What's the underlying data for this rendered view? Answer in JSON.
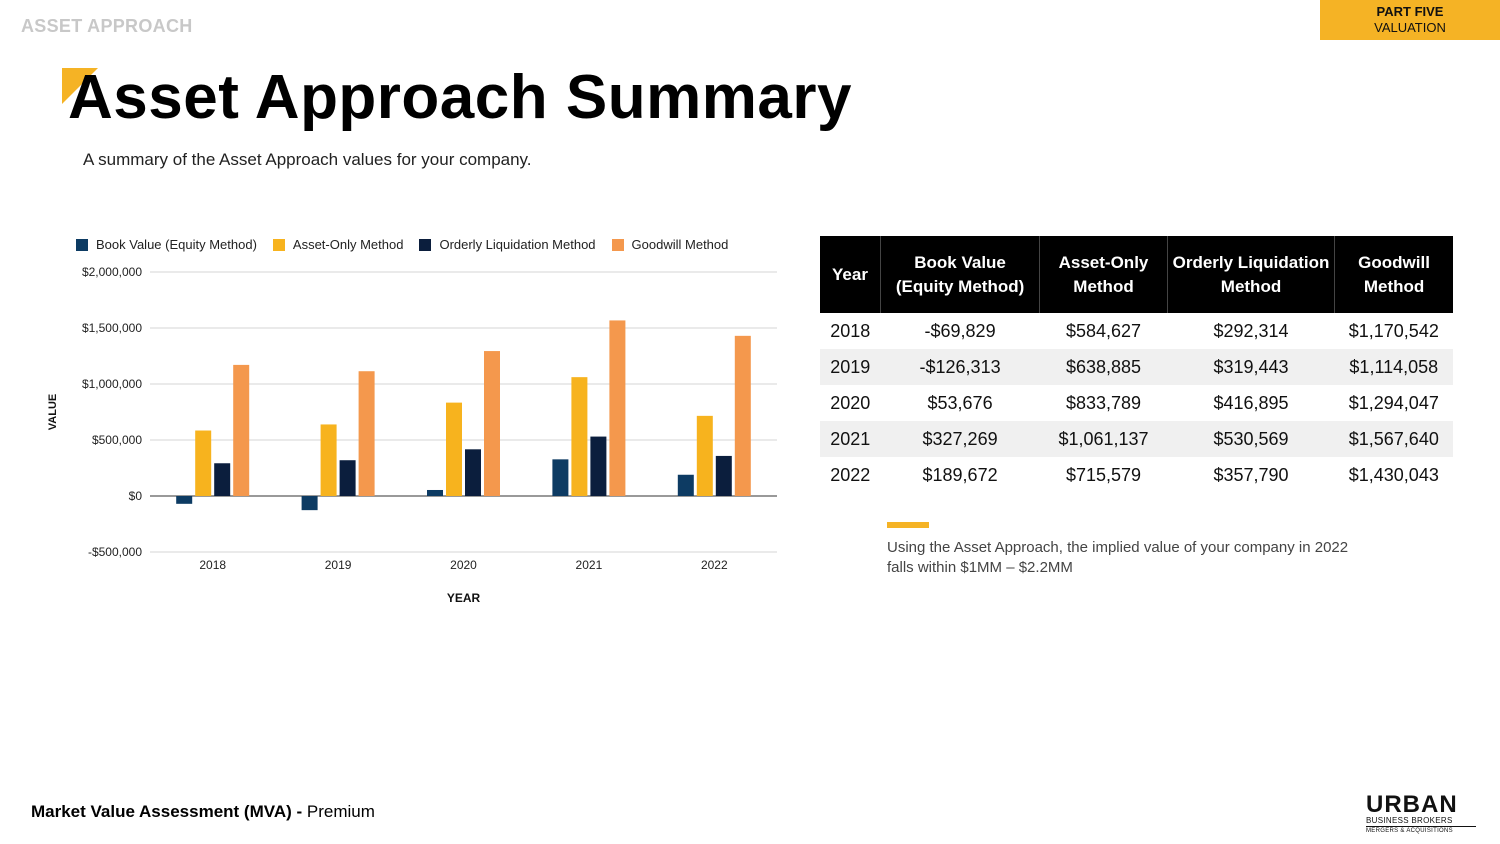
{
  "header": {
    "section_label": "ASSET APPROACH",
    "part_line1": "PART FIVE",
    "part_line2": "VALUATION"
  },
  "title": "Asset Approach Summary",
  "subtitle": "A summary of the Asset Approach values for your company.",
  "colors": {
    "accent": "#f5b325",
    "book_value": "#0d3b63",
    "asset_only": "#f7b31e",
    "orderly_liquidation": "#0b1e3d",
    "goodwill": "#f4984d"
  },
  "chart_data": {
    "type": "bar",
    "categories": [
      "2018",
      "2019",
      "2020",
      "2021",
      "2022"
    ],
    "series": [
      {
        "name": "Book Value (Equity Method)",
        "color": "#0d3b63",
        "values": [
          -69829,
          -126313,
          53676,
          327269,
          189672
        ]
      },
      {
        "name": "Asset-Only Method",
        "color": "#f7b31e",
        "values": [
          584627,
          638885,
          833789,
          1061137,
          715579
        ]
      },
      {
        "name": "Orderly Liquidation Method",
        "color": "#0b1e3d",
        "values": [
          292314,
          319443,
          416895,
          530569,
          357790
        ]
      },
      {
        "name": "Goodwill Method",
        "color": "#f4984d",
        "values": [
          1170542,
          1114058,
          1294047,
          1567640,
          1430043
        ]
      }
    ],
    "xlabel": "YEAR",
    "ylabel": "VALUE",
    "ylim": [
      -500000,
      2000000
    ],
    "yticks": [
      -500000,
      0,
      500000,
      1000000,
      1500000,
      2000000
    ],
    "ytick_labels": [
      "-$500,000",
      "$0",
      "$500,000",
      "$1,000,000",
      "$1,500,000",
      "$2,000,000"
    ],
    "grid": true,
    "legend_position": "top"
  },
  "table": {
    "headers": [
      "Year",
      "Book Value (Equity Method)",
      "Asset-Only Method",
      "Orderly Liquidation Method",
      "Goodwill Method"
    ],
    "rows": [
      [
        "2018",
        "-$69,829",
        "$584,627",
        "$292,314",
        "$1,170,542"
      ],
      [
        "2019",
        "-$126,313",
        "$638,885",
        "$319,443",
        "$1,114,058"
      ],
      [
        "2020",
        "$53,676",
        "$833,789",
        "$416,895",
        "$1,294,047"
      ],
      [
        "2021",
        "$327,269",
        "$1,061,137",
        "$530,569",
        "$1,567,640"
      ],
      [
        "2022",
        "$189,672",
        "$715,579",
        "$357,790",
        "$1,430,043"
      ]
    ]
  },
  "note": "Using the Asset Approach, the implied value of your company in 2022 falls within $1MM – $2.2MM",
  "footer": {
    "bold": "Market Value Assessment (MVA) - ",
    "normal": "Premium"
  },
  "logo": {
    "word": "URBAN",
    "line1": "BUSINESS BROKERS",
    "line2": "MERGERS & ACQUISITIONS"
  }
}
